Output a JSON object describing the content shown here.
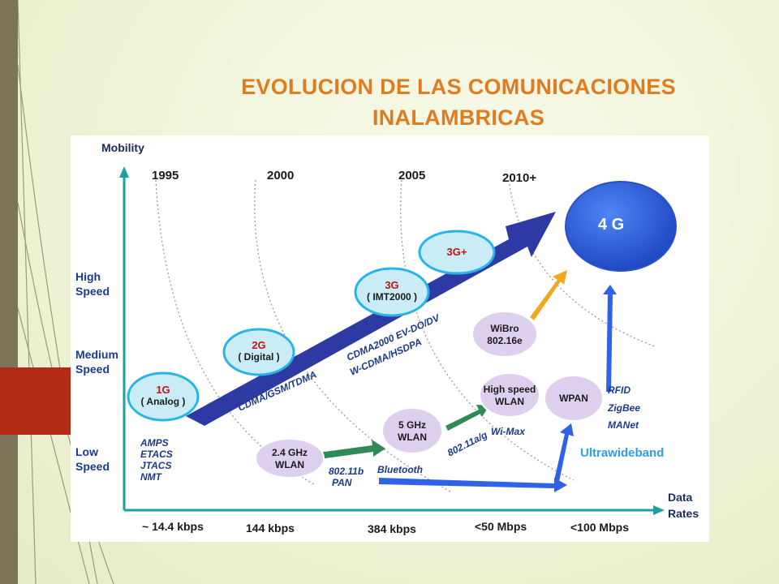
{
  "title": {
    "line1": "EVOLUCION DE LAS COMUNICACIONES",
    "line2": "INALAMBRICAS"
  },
  "diagram": {
    "y_axis_label": "Mobility",
    "x_axis_label_1": "Data",
    "x_axis_label_2": "Rates",
    "years": [
      "1995",
      "2000",
      "2005",
      "2010+"
    ],
    "speeds": {
      "high_1": "High",
      "high_2": "Speed",
      "medium_1": "Medium",
      "medium_2": "Speed",
      "low_1": "Low",
      "low_2": "Speed"
    },
    "rates": [
      "~ 14.4 kbps",
      "144 kbps",
      "384 kbps",
      "<50 Mbps",
      "<100 Mbps"
    ],
    "bubbles": {
      "g1_title": "1G",
      "g1_sub": "( Analog )",
      "g2_title": "2G",
      "g2_sub": "( Digital )",
      "g3_title": "3G",
      "g3_sub": "( IMT2000 )",
      "g3plus": "3G+",
      "g4": "4 G",
      "wlan24_1": "2.4 GHz",
      "wlan24_2": "WLAN",
      "wlan5_1": "5 GHz",
      "wlan5_2": "WLAN",
      "hs_1": "High speed",
      "hs_2": "WLAN",
      "wpan": "WPAN",
      "wibro_1": "WiBro",
      "wibro_2": "802.16e"
    },
    "tech": {
      "first_gen": [
        "AMPS",
        "ETACS",
        "JTACS",
        "NMT"
      ],
      "second_gen": "CDMA/GSM/TDMA",
      "third_gen_1": "CDMA2000  EV-DO/DV",
      "third_gen_2": "W-CDMA/HSDPA",
      "b802_11b": "802.11b",
      "pan": "PAN",
      "bluetooth": "Bluetooth",
      "b802_11ag": "802.11a/g",
      "wimax": "Wi-Max",
      "rfid": "RFID",
      "zigbee": "ZigBee",
      "manet": "MANet",
      "uwb": "Ultrawideband"
    }
  },
  "colors": {
    "title": "#e07b20",
    "bubble_fill": "#c9ecf7",
    "bubble_stroke": "#27b4e6",
    "wlan_fill": "#ddd0ee",
    "main_arrow": "#2e3aa3",
    "green_arrow": "#2e8b57",
    "orange_arrow": "#f0a81c",
    "blue_arrow": "#2f62e8",
    "g4_fill": "#3164e0",
    "uwb": "#2f9de8"
  }
}
